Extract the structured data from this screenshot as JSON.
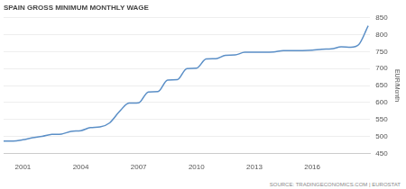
{
  "chart_data": {
    "type": "line",
    "title": "SPAIN GROSS MINIMUM MONTHLY WAGE",
    "y_label": "EUR/Month",
    "annotations": [
      "SOURCE: TRADINGECONOMICS.COM | EUROSTAT"
    ],
    "x": [
      2000.0,
      2000.5,
      2001.0,
      2001.5,
      2002.0,
      2002.5,
      2003.0,
      2003.5,
      2004.0,
      2004.5,
      2005.0,
      2005.5,
      2006.0,
      2006.5,
      2007.0,
      2007.5,
      2008.0,
      2008.5,
      2009.0,
      2009.5,
      2010.0,
      2010.5,
      2011.0,
      2011.5,
      2012.0,
      2012.5,
      2013.0,
      2013.5,
      2014.0,
      2014.5,
      2015.0,
      2015.5,
      2016.0,
      2016.5,
      2017.0,
      2017.5,
      2018.0,
      2018.4,
      2018.9
    ],
    "values": [
      486,
      486,
      490,
      496,
      500,
      506,
      507,
      515,
      517,
      526,
      528,
      540,
      573,
      598,
      599,
      631,
      632,
      666,
      667,
      700,
      701,
      728,
      729,
      739,
      740,
      748,
      748,
      748,
      749,
      753,
      753,
      753,
      754,
      757,
      758,
      764,
      763,
      770,
      826
    ],
    "color": "#5b8fc7",
    "xlim": [
      2000,
      2019
    ],
    "xticks": [
      2001,
      2004,
      2007,
      2010,
      2013,
      2016
    ],
    "ylim": [
      450,
      850
    ],
    "yticks": [
      450,
      500,
      550,
      600,
      650,
      700,
      750,
      800,
      850
    ],
    "grid": true
  }
}
